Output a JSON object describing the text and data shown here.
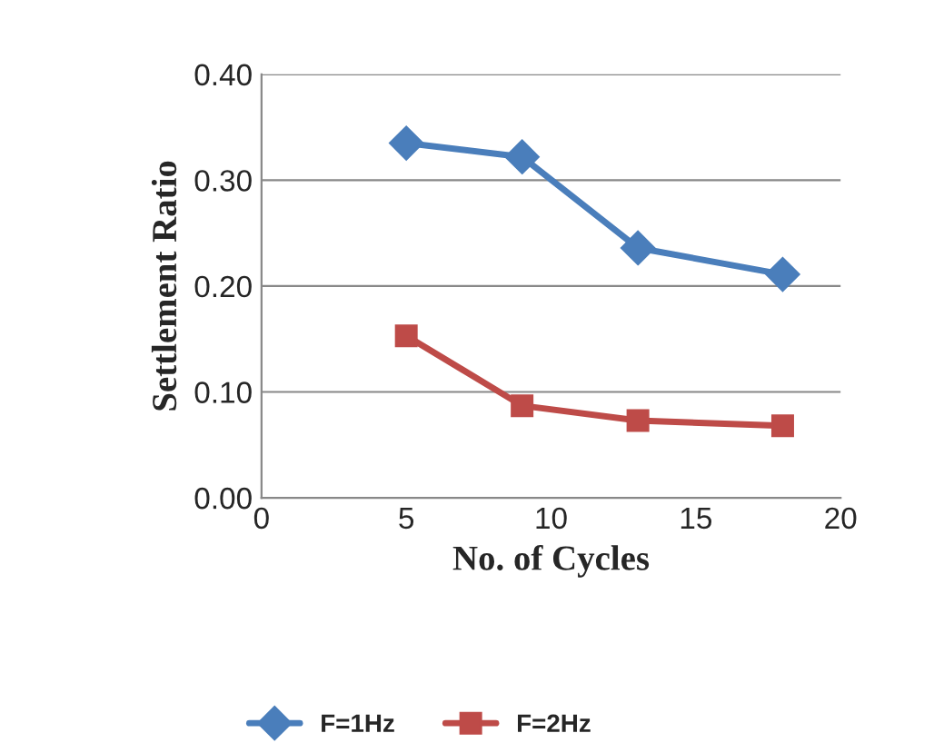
{
  "chart_data": {
    "type": "line",
    "xlabel": "No. of Cycles",
    "ylabel": "Settlement Ratio",
    "xlim": [
      0,
      20
    ],
    "xticks": [
      0,
      5,
      10,
      15,
      20
    ],
    "ylim": [
      0,
      0.4
    ],
    "yticks": [
      {
        "value": 0,
        "label": "0.00"
      },
      {
        "value": 0.1,
        "label": "0.10"
      },
      {
        "value": 0.2,
        "label": "0.20"
      },
      {
        "value": 0.3,
        "label": "0.30"
      },
      {
        "value": 0.4,
        "label": "0.40"
      }
    ],
    "x": [
      5,
      9,
      13,
      18
    ],
    "grid": "y",
    "legend": "bottom",
    "line_style": "solid",
    "series": [
      {
        "name": "F=1Hz",
        "color": "#4a7ebb",
        "marker": "diamond",
        "values": [
          0.335,
          0.322,
          0.236,
          0.211
        ]
      },
      {
        "name": "F=2Hz",
        "color": "#be4b48",
        "marker": "square",
        "values": [
          0.153,
          0.087,
          0.073,
          0.068
        ]
      }
    ]
  }
}
